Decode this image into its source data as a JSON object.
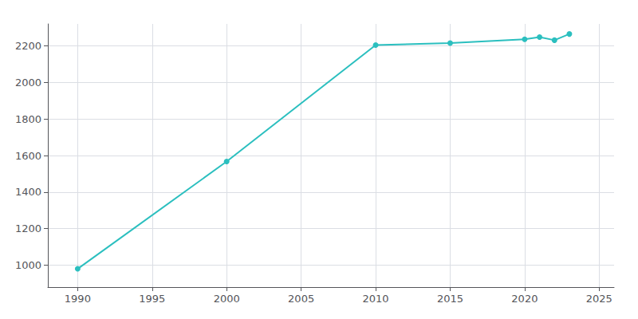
{
  "chart_data": {
    "type": "line",
    "x": [
      1990,
      2000,
      2010,
      2015,
      2020,
      2021,
      2022,
      2023
    ],
    "values": [
      980,
      1567,
      2204,
      2215,
      2236,
      2248,
      2231,
      2265
    ],
    "color": "#2bbfbf",
    "marker": "circle",
    "xlim": [
      1988,
      2026
    ],
    "ylim": [
      880,
      2320
    ],
    "xticks": [
      1990,
      1995,
      2000,
      2005,
      2010,
      2015,
      2020,
      2025
    ],
    "yticks": [
      1000,
      1200,
      1400,
      1600,
      1800,
      2000,
      2200
    ],
    "grid": true
  }
}
